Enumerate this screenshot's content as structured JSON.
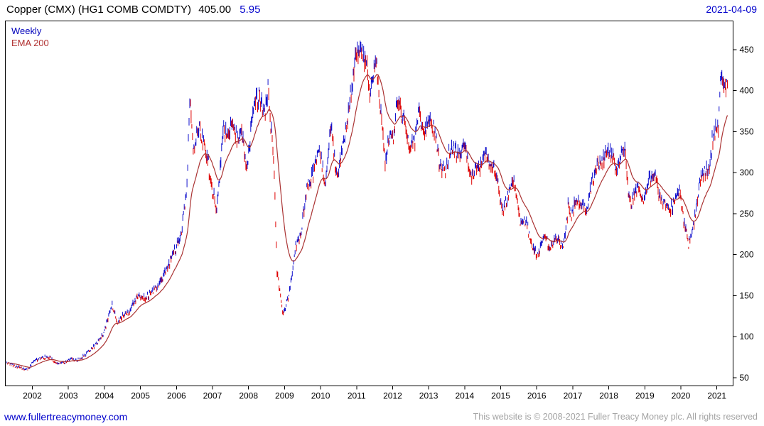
{
  "header": {
    "instrument": "Copper (CMX) (HG1 COMB COMDTY)",
    "price": "405.00",
    "change": "5.95",
    "date": "2021-04-09"
  },
  "legend": {
    "weekly": "Weekly",
    "ema": "EMA 200"
  },
  "footer": {
    "site": "www.fullertreacymoney.com",
    "copyright": "This website is © 2008-2021 Fuller Treacy Money plc. All rights reserved"
  },
  "colors": {
    "up_bar": "#1212cd",
    "down_bar": "#de0202",
    "ema_line": "#aa3333",
    "accent_blue": "#0000cc",
    "frame": "#000000",
    "axis_text": "#000000",
    "muted_text": "#a3a3a3"
  },
  "chart_data": {
    "type": "line",
    "subtype": "weekly-high-low-range-bars-with-ema",
    "title": "Copper (CMX) (HG1 COMB COMDTY)",
    "last": {
      "price": 405.0,
      "change": 5.95,
      "date": "2021-04-09"
    },
    "legend_position": "top-left-inside",
    "grid": false,
    "x_axis": {
      "range": [
        2001.25,
        2021.45
      ],
      "ticks": [
        2002,
        2003,
        2004,
        2005,
        2006,
        2007,
        2008,
        2009,
        2010,
        2011,
        2012,
        2013,
        2014,
        2015,
        2016,
        2017,
        2018,
        2019,
        2020,
        2021
      ]
    },
    "y_axis": {
      "side": "right",
      "range": [
        40,
        485
      ],
      "ticks": [
        50,
        100,
        150,
        200,
        250,
        300,
        350,
        400,
        450
      ]
    },
    "series": [
      {
        "name": "Weekly",
        "style": "hl-bars",
        "up_color": "#1212cd",
        "down_color": "#de0202",
        "weekly_close_anchors": [
          [
            "2001-04",
            68
          ],
          [
            "2001-07",
            64
          ],
          [
            "2001-11",
            60
          ],
          [
            "2002-01",
            70
          ],
          [
            "2002-03",
            73
          ],
          [
            "2002-06",
            76
          ],
          [
            "2002-08",
            68
          ],
          [
            "2002-10",
            67
          ],
          [
            "2003-01",
            72
          ],
          [
            "2003-04",
            72
          ],
          [
            "2003-07",
            80
          ],
          [
            "2003-10",
            92
          ],
          [
            "2003-12",
            102
          ],
          [
            "2004-03",
            138
          ],
          [
            "2004-05",
            118
          ],
          [
            "2004-07",
            127
          ],
          [
            "2004-09",
            130
          ],
          [
            "2004-10",
            142
          ],
          [
            "2004-12",
            148
          ],
          [
            "2005-02",
            148
          ],
          [
            "2005-04",
            152
          ],
          [
            "2005-06",
            160
          ],
          [
            "2005-08",
            172
          ],
          [
            "2005-10",
            188
          ],
          [
            "2005-12",
            205
          ],
          [
            "2006-02",
            225
          ],
          [
            "2006-04",
            280
          ],
          [
            "2006-05",
            395
          ],
          [
            "2006-06",
            330
          ],
          [
            "2006-08",
            358
          ],
          [
            "2006-09",
            345
          ],
          [
            "2006-11",
            315
          ],
          [
            "2006-12",
            285
          ],
          [
            "2007-02",
            255
          ],
          [
            "2007-04",
            355
          ],
          [
            "2007-06",
            340
          ],
          [
            "2007-07",
            362
          ],
          [
            "2007-09",
            335
          ],
          [
            "2007-10",
            360
          ],
          [
            "2007-12",
            302
          ],
          [
            "2008-02",
            378
          ],
          [
            "2008-04",
            395
          ],
          [
            "2008-06",
            370
          ],
          [
            "2008-07",
            402
          ],
          [
            "2008-09",
            310
          ],
          [
            "2008-10",
            180
          ],
          [
            "2008-12",
            128
          ],
          [
            "2009-02",
            150
          ],
          [
            "2009-04",
            205
          ],
          [
            "2009-06",
            228
          ],
          [
            "2009-08",
            282
          ],
          [
            "2009-10",
            298
          ],
          [
            "2009-12",
            332
          ],
          [
            "2010-02",
            290
          ],
          [
            "2010-04",
            358
          ],
          [
            "2010-06",
            292
          ],
          [
            "2010-08",
            332
          ],
          [
            "2010-10",
            378
          ],
          [
            "2010-12",
            438
          ],
          [
            "2011-02",
            452
          ],
          [
            "2011-04",
            428
          ],
          [
            "2011-05",
            400
          ],
          [
            "2011-07",
            442
          ],
          [
            "2011-08",
            398
          ],
          [
            "2011-10",
            310
          ],
          [
            "2011-11",
            342
          ],
          [
            "2012-01",
            345
          ],
          [
            "2012-02",
            388
          ],
          [
            "2012-04",
            368
          ],
          [
            "2012-06",
            333
          ],
          [
            "2012-08",
            340
          ],
          [
            "2012-09",
            376
          ],
          [
            "2012-11",
            346
          ],
          [
            "2013-01",
            368
          ],
          [
            "2013-03",
            345
          ],
          [
            "2013-04",
            308
          ],
          [
            "2013-06",
            303
          ],
          [
            "2013-08",
            332
          ],
          [
            "2013-11",
            322
          ],
          [
            "2013-12",
            338
          ],
          [
            "2014-03",
            293
          ],
          [
            "2014-06",
            312
          ],
          [
            "2014-07",
            325
          ],
          [
            "2014-09",
            308
          ],
          [
            "2014-11",
            302
          ],
          [
            "2015-01",
            250
          ],
          [
            "2015-05",
            292
          ],
          [
            "2015-07",
            238
          ],
          [
            "2015-09",
            242
          ],
          [
            "2015-11",
            206
          ],
          [
            "2016-01",
            200
          ],
          [
            "2016-03",
            226
          ],
          [
            "2016-05",
            206
          ],
          [
            "2016-07",
            221
          ],
          [
            "2016-09",
            209
          ],
          [
            "2016-10",
            221
          ],
          [
            "2016-11",
            262
          ],
          [
            "2016-12",
            250
          ],
          [
            "2017-02",
            270
          ],
          [
            "2017-05",
            252
          ],
          [
            "2017-07",
            289
          ],
          [
            "2017-09",
            312
          ],
          [
            "2017-10",
            308
          ],
          [
            "2017-12",
            330
          ],
          [
            "2018-02",
            318
          ],
          [
            "2018-03",
            302
          ],
          [
            "2018-06",
            330
          ],
          [
            "2018-07",
            276
          ],
          [
            "2018-08",
            262
          ],
          [
            "2018-10",
            281
          ],
          [
            "2018-12",
            263
          ],
          [
            "2019-02",
            294
          ],
          [
            "2019-04",
            292
          ],
          [
            "2019-06",
            266
          ],
          [
            "2019-09",
            256
          ],
          [
            "2019-11",
            266
          ],
          [
            "2019-12",
            280
          ],
          [
            "2020-01",
            251
          ],
          [
            "2020-03",
            212
          ],
          [
            "2020-05",
            240
          ],
          [
            "2020-07",
            290
          ],
          [
            "2020-09",
            303
          ],
          [
            "2020-10",
            307
          ],
          [
            "2020-11",
            340
          ],
          [
            "2020-12",
            352
          ],
          [
            "2021-01",
            356
          ],
          [
            "2021-02",
            428
          ],
          [
            "2021-03",
            398
          ],
          [
            "2021-04",
            405
          ]
        ]
      },
      {
        "name": "EMA 200",
        "style": "line",
        "period": 200,
        "color": "#aa3333"
      }
    ]
  }
}
